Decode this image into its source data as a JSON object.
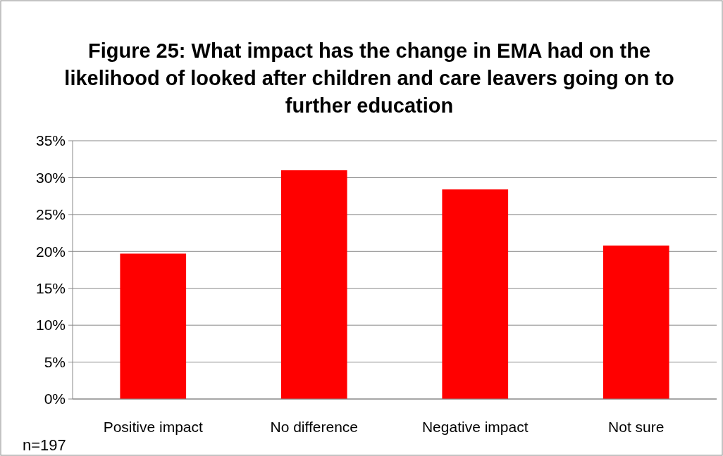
{
  "chart_data": {
    "type": "bar",
    "title": "Figure 25: What impact has the change in EMA had on the likelihood of looked after children and care leavers going on to further education",
    "categories": [
      "Positive impact",
      "No difference",
      "Negative impact",
      "Not sure"
    ],
    "values": [
      19.7,
      31.0,
      28.4,
      20.8
    ],
    "color": "#ff0000",
    "ylim": [
      0,
      35
    ],
    "yticks": [
      {
        "value": 0,
        "label": "0%"
      },
      {
        "value": 5,
        "label": "5%"
      },
      {
        "value": 10,
        "label": "10%"
      },
      {
        "value": 15,
        "label": "15%"
      },
      {
        "value": 20,
        "label": "20%"
      },
      {
        "value": 25,
        "label": "25%"
      },
      {
        "value": 30,
        "label": "30%"
      },
      {
        "value": 35,
        "label": "35%"
      }
    ],
    "grid": "y",
    "annotations": [
      "n=197"
    ]
  }
}
